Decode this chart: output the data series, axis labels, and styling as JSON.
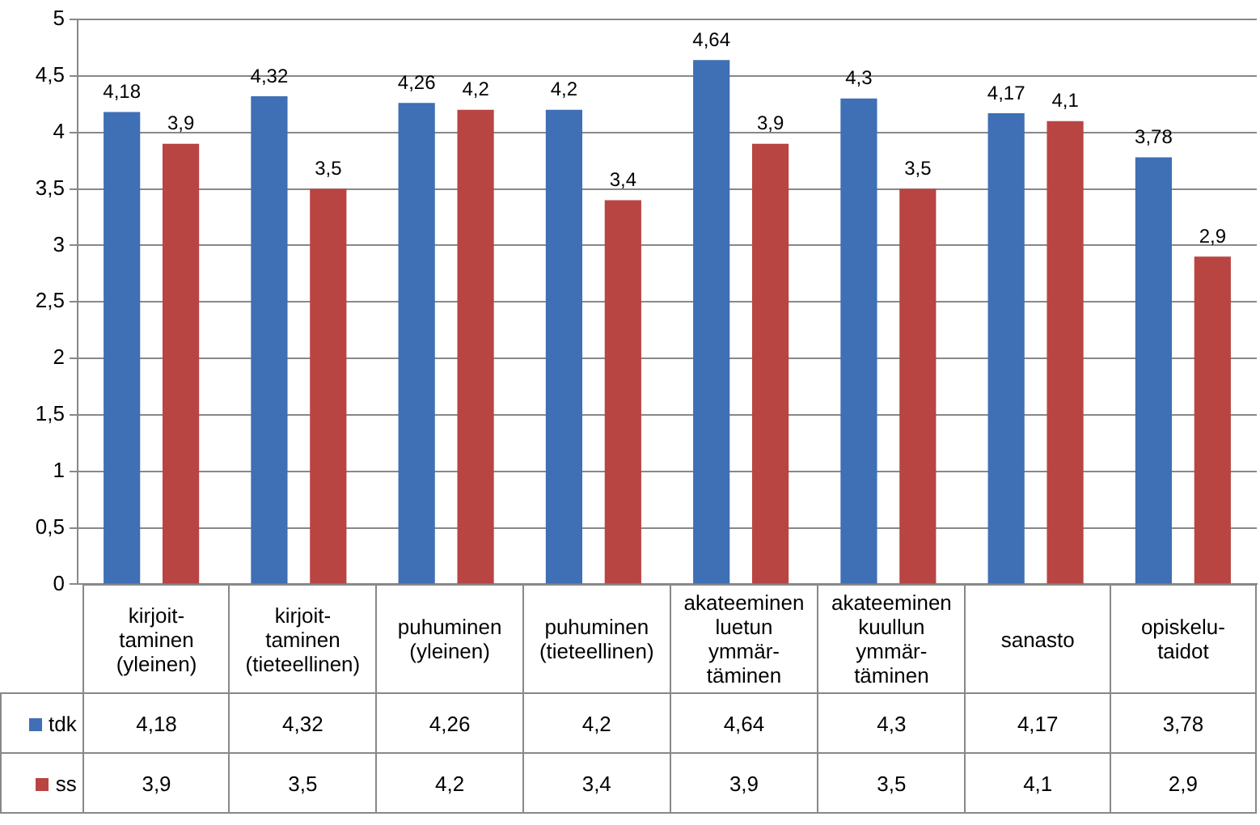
{
  "chart_data": {
    "type": "bar",
    "categories": [
      "kirjoit-\ntaminen\n(yleinen)",
      "kirjoit-\ntaminen\n(tieteellinen)",
      "puhuminen\n(yleinen)",
      "puhuminen\n(tieteellinen)",
      "akateeminen\nluetun\nymmär-\ntäminen",
      "akateeminen\nkuullun\nymmär-\ntäminen",
      "sanasto",
      "opiskelu-\ntaidot"
    ],
    "series": [
      {
        "name": "tdk",
        "color": "#3f6fb5",
        "values": [
          4.18,
          4.32,
          4.26,
          4.2,
          4.64,
          4.3,
          4.17,
          3.78
        ],
        "value_labels": [
          "4,18",
          "4,32",
          "4,26",
          "4,2",
          "4,64",
          "4,3",
          "4,17",
          "3,78"
        ]
      },
      {
        "name": "ss",
        "color": "#b84542",
        "values": [
          3.9,
          3.5,
          4.2,
          3.4,
          3.9,
          3.5,
          4.1,
          2.9
        ],
        "value_labels": [
          "3,9",
          "3,5",
          "4,2",
          "3,4",
          "3,9",
          "3,5",
          "4,1",
          "2,9"
        ]
      }
    ],
    "ylim": [
      0,
      5
    ],
    "yticks": [
      0,
      {
        "value": 0.5,
        "label": "0,5"
      },
      1,
      {
        "value": 1.5,
        "label": "1,5"
      },
      2,
      {
        "value": 2.5,
        "label": "2,5"
      },
      3,
      {
        "value": 3.5,
        "label": "3,5"
      },
      4,
      {
        "value": 4.5,
        "label": "4,5"
      },
      5
    ],
    "grid": "y",
    "legend": "bottom"
  }
}
